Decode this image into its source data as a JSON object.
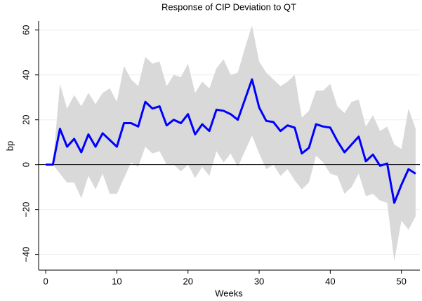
{
  "chart_data": {
    "type": "line",
    "title": "Response of CIP Deviation to QT",
    "x_label": "Weeks",
    "y_label": "bp",
    "x": [
      0,
      1,
      2,
      3,
      4,
      5,
      6,
      7,
      8,
      9,
      10,
      11,
      12,
      13,
      14,
      15,
      16,
      17,
      18,
      19,
      20,
      21,
      22,
      23,
      24,
      25,
      26,
      27,
      28,
      29,
      30,
      31,
      32,
      33,
      34,
      35,
      36,
      37,
      38,
      39,
      40,
      41,
      42,
      43,
      44,
      45,
      46,
      47,
      48,
      49,
      50,
      51,
      52
    ],
    "series": [
      {
        "color": "#0000ff",
        "values": [
          0,
          0,
          16,
          8,
          11.5,
          5.5,
          13.5,
          8,
          14,
          11,
          8,
          18.5,
          18.5,
          17,
          28,
          25,
          26,
          17.5,
          20,
          18.5,
          22.5,
          13.5,
          18,
          15,
          24.5,
          24,
          22.5,
          20,
          29,
          38,
          25.5,
          19.5,
          19,
          15,
          17.5,
          16.5,
          5,
          7.5,
          18,
          17,
          16.5,
          10.5,
          5.5,
          9,
          12.5,
          1.5,
          4.5,
          -0.5,
          0.5,
          -17,
          -9,
          -2,
          -4
        ]
      }
    ],
    "band": {
      "color": "#d9d9d9",
      "upper": [
        0,
        0,
        36,
        25,
        31,
        26,
        32,
        27,
        32,
        34,
        28,
        44,
        38,
        35,
        48,
        45,
        46,
        35,
        40,
        39,
        45,
        32,
        37,
        34,
        43,
        47,
        40,
        41,
        52,
        62,
        46,
        41,
        38,
        35,
        37,
        40,
        21,
        24,
        33,
        33,
        36,
        26,
        23,
        28,
        29,
        17,
        22,
        15,
        17,
        9,
        7,
        25,
        16
      ],
      "lower": [
        0,
        0,
        -4,
        -8,
        -8,
        -15,
        -5,
        -11,
        -4,
        -13,
        -13,
        -6,
        1,
        -1,
        8,
        5,
        6,
        0,
        0,
        -3,
        0,
        -6,
        -1,
        -5,
        6,
        1,
        5,
        -1,
        6,
        13,
        5,
        -2,
        0,
        -5,
        -2,
        -7,
        -11,
        -8,
        4,
        1,
        -4,
        -5,
        -13,
        -10,
        -4,
        -14,
        -13,
        -16,
        -17,
        -43,
        -25,
        -29,
        -23
      ]
    },
    "hline": 0,
    "xlim": [
      -1,
      52.6
    ],
    "ylim": [
      -47,
      64
    ],
    "xticks": [
      0,
      10,
      20,
      30,
      40,
      50
    ],
    "yticks": [
      {
        "value": -40,
        "label": "−40"
      },
      {
        "value": -20,
        "label": "−20"
      },
      0,
      20,
      40,
      60
    ],
    "grid": true
  }
}
